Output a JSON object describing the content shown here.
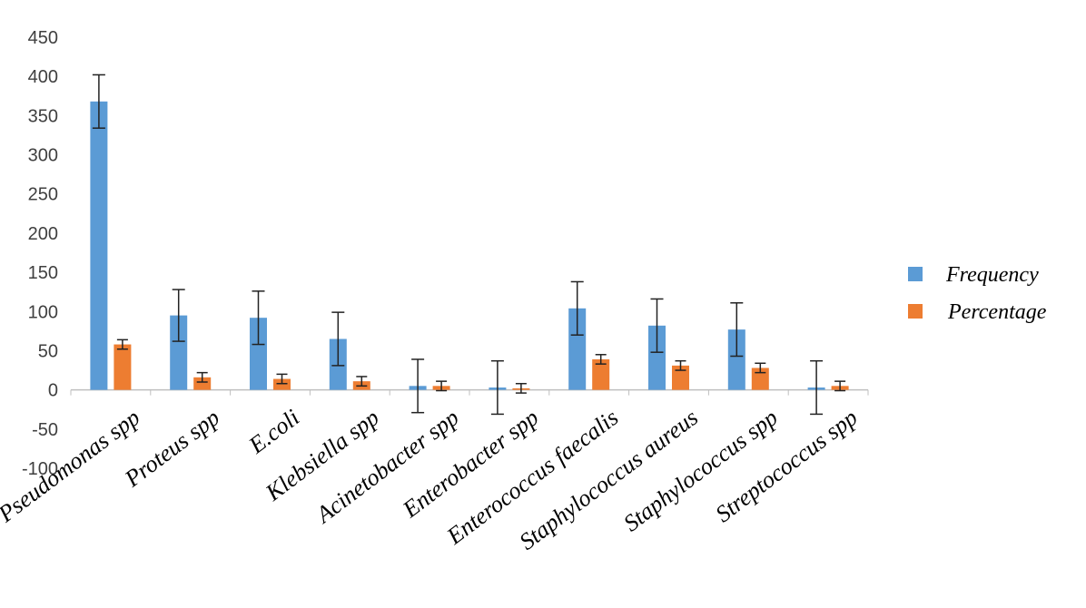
{
  "chart_data": {
    "type": "bar",
    "categories": [
      "Pseudomonas spp",
      "Proteus spp",
      "E.coli",
      "Klebsiella spp",
      "Acinetobacter spp",
      "Enterobacter spp",
      "Enterococcus faecalis",
      "Staphylococcus aureus",
      "Staphylococcus spp",
      "Streptococcus spp"
    ],
    "series": [
      {
        "name": "Frequency",
        "color": "#5b9bd5",
        "values": [
          368,
          95,
          92,
          65,
          5,
          3,
          104,
          82,
          77,
          3
        ],
        "error": [
          34,
          33,
          34,
          34,
          34,
          34,
          34,
          34,
          34,
          34
        ]
      },
      {
        "name": "Percentage",
        "color": "#ed7d31",
        "values": [
          58,
          16,
          14,
          11,
          5,
          2,
          39,
          31,
          28,
          5
        ],
        "error": [
          6,
          6,
          6,
          6,
          6,
          6,
          6,
          6,
          6,
          6
        ]
      }
    ],
    "ylim": [
      -100,
      450
    ],
    "yticks": [
      -100,
      -50,
      0,
      50,
      100,
      150,
      200,
      250,
      300,
      350,
      400,
      450
    ],
    "grid": false,
    "legend_position": "right"
  }
}
